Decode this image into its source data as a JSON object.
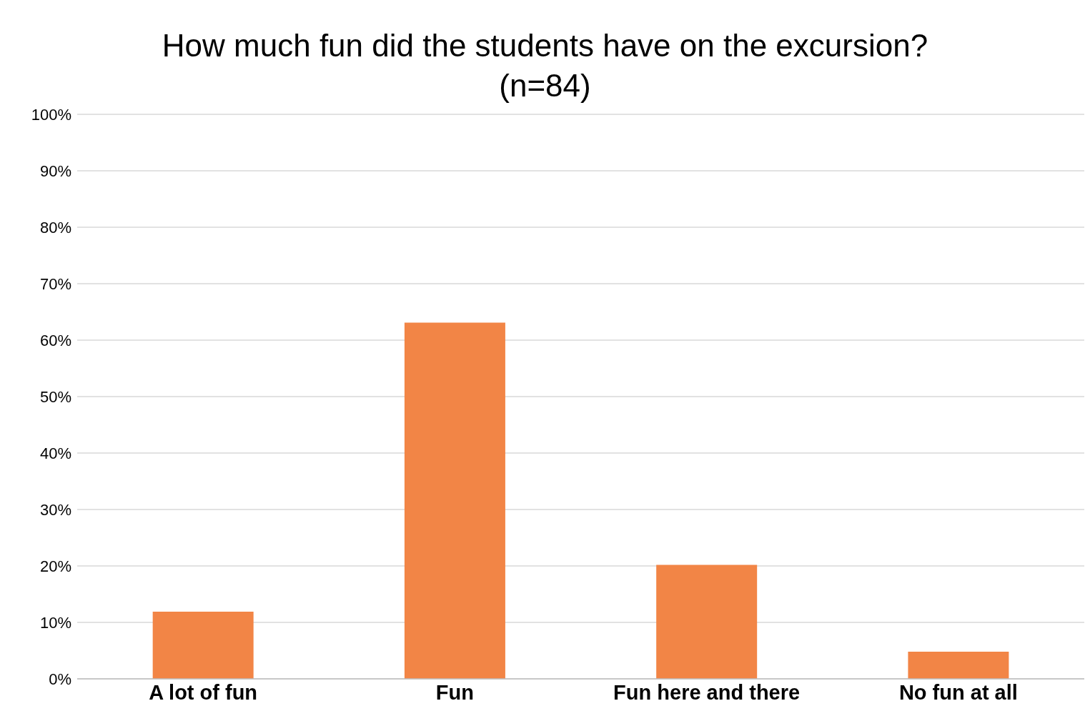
{
  "chart_data": {
    "type": "bar",
    "title": "How much fun did the students have on the excursion?",
    "subtitle": "(n=84)",
    "categories": [
      "A lot of fun",
      "Fun",
      "Fun here and there",
      "No fun at all"
    ],
    "values": [
      11.9,
      63.1,
      20.2,
      4.8
    ],
    "color": "#f28546",
    "ylim": [
      0,
      100
    ],
    "yticks": [
      {
        "value": 0,
        "label": "0%"
      },
      {
        "value": 10,
        "label": "10%"
      },
      {
        "value": 20,
        "label": "20%"
      },
      {
        "value": 30,
        "label": "30%"
      },
      {
        "value": 40,
        "label": "40%"
      },
      {
        "value": 50,
        "label": "50%"
      },
      {
        "value": 60,
        "label": "60%"
      },
      {
        "value": 70,
        "label": "70%"
      },
      {
        "value": 80,
        "label": "80%"
      },
      {
        "value": 90,
        "label": "90%"
      },
      {
        "value": 100,
        "label": "100%"
      }
    ],
    "grid": "y"
  }
}
